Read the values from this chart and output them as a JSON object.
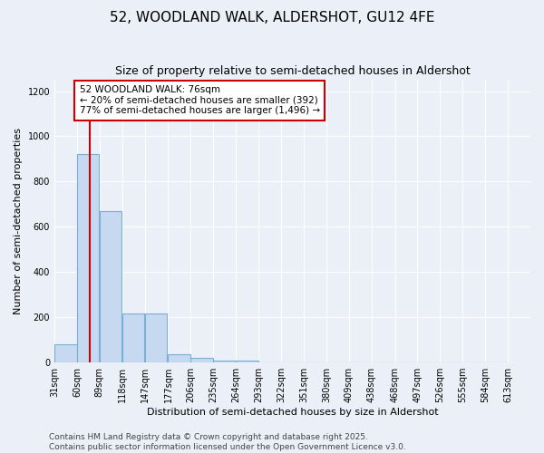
{
  "title_line1": "52, WOODLAND WALK, ALDERSHOT, GU12 4FE",
  "title_line2": "Size of property relative to semi-detached houses in Aldershot",
  "xlabel": "Distribution of semi-detached houses by size in Aldershot",
  "ylabel": "Number of semi-detached properties",
  "bar_left_edges": [
    31,
    60,
    89,
    118,
    147,
    177,
    206,
    235,
    264,
    293,
    322,
    351,
    380,
    409,
    438,
    468,
    497,
    526,
    555,
    584
  ],
  "bar_heights": [
    80,
    920,
    670,
    215,
    215,
    35,
    20,
    10,
    10,
    0,
    0,
    0,
    0,
    0,
    0,
    0,
    0,
    0,
    0,
    0
  ],
  "bin_width": 29,
  "bar_color": "#c6d9f0",
  "bar_edge_color": "#7bafd4",
  "background_color": "#eaeff8",
  "grid_color": "#ffffff",
  "property_line_x": 76,
  "property_line_color": "#cc0000",
  "annotation_text": "52 WOODLAND WALK: 76sqm\n← 20% of semi-detached houses are smaller (392)\n77% of semi-detached houses are larger (1,496) →",
  "annotation_box_color": "#ffffff",
  "annotation_box_edge_color": "#cc0000",
  "ylim": [
    0,
    1250
  ],
  "yticks": [
    0,
    200,
    400,
    600,
    800,
    1000,
    1200
  ],
  "tick_labels": [
    "31sqm",
    "60sqm",
    "89sqm",
    "118sqm",
    "147sqm",
    "177sqm",
    "206sqm",
    "235sqm",
    "264sqm",
    "293sqm",
    "322sqm",
    "351sqm",
    "380sqm",
    "409sqm",
    "438sqm",
    "468sqm",
    "497sqm",
    "526sqm",
    "555sqm",
    "584sqm",
    "613sqm"
  ],
  "tick_positions": [
    31,
    60,
    89,
    118,
    147,
    177,
    206,
    235,
    264,
    293,
    322,
    351,
    380,
    409,
    438,
    468,
    497,
    526,
    555,
    584,
    613
  ],
  "footer_line1": "Contains HM Land Registry data © Crown copyright and database right 2025.",
  "footer_line2": "Contains public sector information licensed under the Open Government Licence v3.0.",
  "title_fontsize": 11,
  "subtitle_fontsize": 9,
  "axis_label_fontsize": 8,
  "tick_fontsize": 7,
  "annotation_fontsize": 7.5,
  "footer_fontsize": 6.5
}
